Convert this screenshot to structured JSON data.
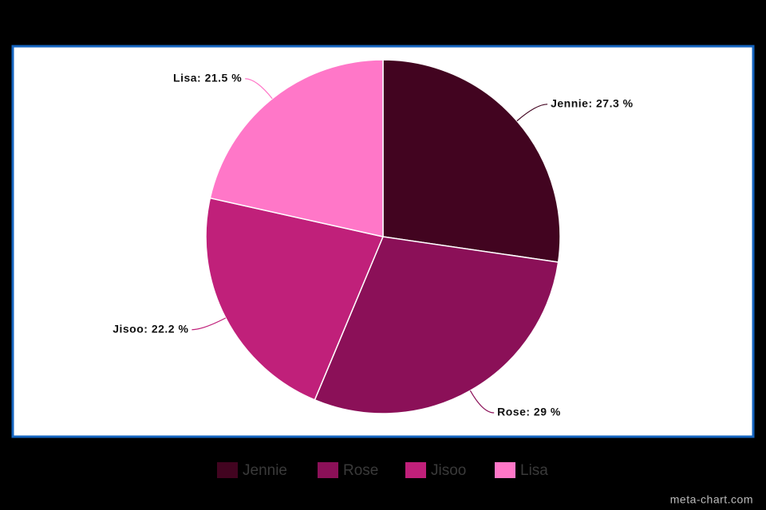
{
  "chart_data": {
    "type": "pie",
    "categories": [
      "Jennie",
      "Rose",
      "Jisoo",
      "Lisa"
    ],
    "values": [
      27.3,
      29,
      22.2,
      21.5
    ],
    "value_labels": [
      "Jennie: 27.3 %",
      "Rose: 29 %",
      "Jisoo: 22.2 %",
      "Lisa: 21.5 %"
    ],
    "colors": [
      "#420420",
      "#8b1058",
      "#c0207a",
      "#ff77c8"
    ],
    "legend": "bottom",
    "watermark": "meta-chart.com"
  }
}
